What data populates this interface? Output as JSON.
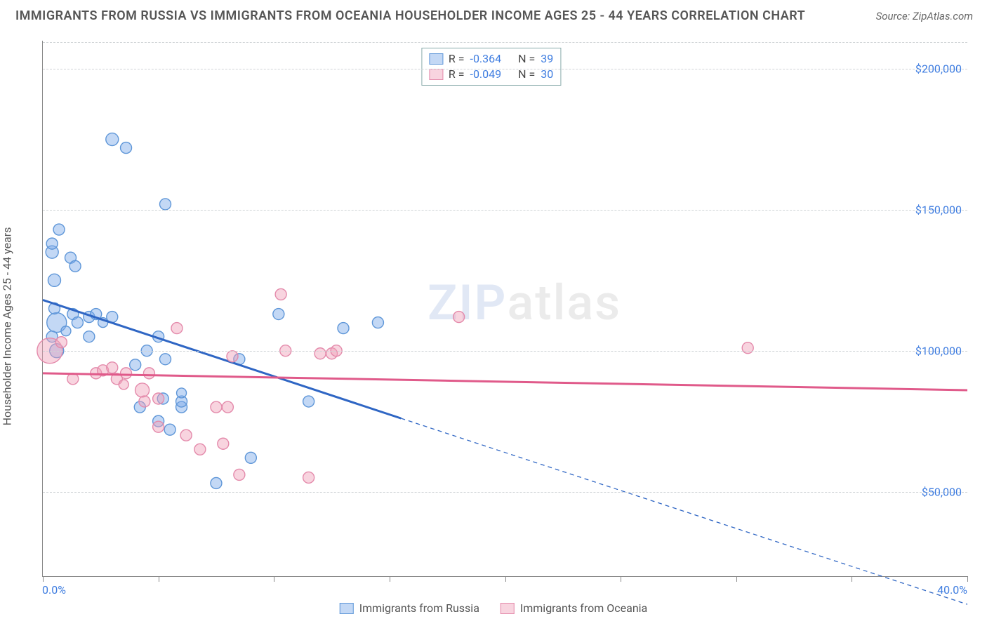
{
  "header": {
    "title": "IMMIGRANTS FROM RUSSIA VS IMMIGRANTS FROM OCEANIA HOUSEHOLDER INCOME AGES 25 - 44 YEARS CORRELATION CHART",
    "source_prefix": "Source: ",
    "source_name": "ZipAtlas.com"
  },
  "axes": {
    "y_title": "Householder Income Ages 25 - 44 years",
    "x_min_label": "0.0%",
    "x_max_label": "40.0%",
    "xlim": [
      0,
      40
    ],
    "ylim": [
      20000,
      210000
    ],
    "y_ticks": [
      50000,
      100000,
      150000,
      200000
    ],
    "y_tick_labels": [
      "$50,000",
      "$100,000",
      "$150,000",
      "$200,000"
    ],
    "x_ticks": [
      0,
      5,
      10,
      15,
      20,
      25,
      30,
      35,
      40
    ],
    "grid_color": "#cfd3d6",
    "axis_color": "#888888",
    "label_color": "#3f7de0",
    "label_fontsize": 16
  },
  "watermark": {
    "a": "ZIP",
    "b": "atlas"
  },
  "series": [
    {
      "id": "russia",
      "label": "Immigrants from Russia",
      "color_fill": "rgba(122,169,232,0.45)",
      "color_stroke": "#5e96d8",
      "line_color": "#2f66c4",
      "line_width": 3,
      "reg": {
        "x1": 0,
        "y1": 118000,
        "x2": 15.5,
        "y2": 76000,
        "dash_to_x": 40,
        "dash_to_y": 10000
      },
      "stats": {
        "R_label": "R =",
        "R": "-0.364",
        "N_label": "N =",
        "N": "39"
      },
      "marker_r_default": 8,
      "points": [
        {
          "x": 0.4,
          "y": 135000,
          "r": 9
        },
        {
          "x": 0.4,
          "y": 138000,
          "r": 8
        },
        {
          "x": 0.5,
          "y": 125000,
          "r": 9
        },
        {
          "x": 0.6,
          "y": 110000,
          "r": 14
        },
        {
          "x": 0.7,
          "y": 143000,
          "r": 8
        },
        {
          "x": 0.5,
          "y": 115000,
          "r": 8
        },
        {
          "x": 1.2,
          "y": 133000,
          "r": 8
        },
        {
          "x": 1.4,
          "y": 130000,
          "r": 8
        },
        {
          "x": 1.3,
          "y": 113000,
          "r": 8
        },
        {
          "x": 1.5,
          "y": 110000,
          "r": 8
        },
        {
          "x": 2.0,
          "y": 112000,
          "r": 8
        },
        {
          "x": 2.3,
          "y": 113000,
          "r": 8
        },
        {
          "x": 2.0,
          "y": 105000,
          "r": 8
        },
        {
          "x": 3.0,
          "y": 175000,
          "r": 9
        },
        {
          "x": 3.6,
          "y": 172000,
          "r": 8
        },
        {
          "x": 3.0,
          "y": 112000,
          "r": 8
        },
        {
          "x": 4.0,
          "y": 95000,
          "r": 8
        },
        {
          "x": 4.5,
          "y": 100000,
          "r": 8
        },
        {
          "x": 4.2,
          "y": 80000,
          "r": 8
        },
        {
          "x": 5.0,
          "y": 105000,
          "r": 8
        },
        {
          "x": 5.3,
          "y": 152000,
          "r": 8
        },
        {
          "x": 5.2,
          "y": 83000,
          "r": 8
        },
        {
          "x": 5.3,
          "y": 97000,
          "r": 8
        },
        {
          "x": 5.5,
          "y": 72000,
          "r": 8
        },
        {
          "x": 5.0,
          "y": 75000,
          "r": 8
        },
        {
          "x": 6.0,
          "y": 80000,
          "r": 8
        },
        {
          "x": 6.0,
          "y": 82000,
          "r": 8
        },
        {
          "x": 6.0,
          "y": 85000,
          "r": 7
        },
        {
          "x": 7.5,
          "y": 53000,
          "r": 8
        },
        {
          "x": 8.5,
          "y": 97000,
          "r": 8
        },
        {
          "x": 9.0,
          "y": 62000,
          "r": 8
        },
        {
          "x": 10.2,
          "y": 113000,
          "r": 8
        },
        {
          "x": 11.5,
          "y": 82000,
          "r": 8
        },
        {
          "x": 13.0,
          "y": 108000,
          "r": 8
        },
        {
          "x": 14.5,
          "y": 110000,
          "r": 8
        },
        {
          "x": 0.4,
          "y": 105000,
          "r": 8
        },
        {
          "x": 1.0,
          "y": 107000,
          "r": 7
        },
        {
          "x": 2.6,
          "y": 110000,
          "r": 7
        },
        {
          "x": 0.6,
          "y": 100000,
          "r": 10
        }
      ]
    },
    {
      "id": "oceania",
      "label": "Immigrants from Oceania",
      "color_fill": "rgba(240,160,185,0.45)",
      "color_stroke": "#e48aab",
      "line_color": "#e05a8a",
      "line_width": 3,
      "reg": {
        "x1": 0,
        "y1": 92000,
        "x2": 40,
        "y2": 86000
      },
      "stats": {
        "R_label": "R =",
        "R": "-0.049",
        "N_label": "N =",
        "N": "30"
      },
      "marker_r_default": 8,
      "points": [
        {
          "x": 0.3,
          "y": 100000,
          "r": 18
        },
        {
          "x": 0.8,
          "y": 103000,
          "r": 8
        },
        {
          "x": 1.3,
          "y": 90000,
          "r": 8
        },
        {
          "x": 2.3,
          "y": 92000,
          "r": 8
        },
        {
          "x": 2.6,
          "y": 93000,
          "r": 8
        },
        {
          "x": 3.0,
          "y": 94000,
          "r": 8
        },
        {
          "x": 3.2,
          "y": 90000,
          "r": 8
        },
        {
          "x": 3.6,
          "y": 92000,
          "r": 8
        },
        {
          "x": 4.3,
          "y": 86000,
          "r": 10
        },
        {
          "x": 4.4,
          "y": 82000,
          "r": 8
        },
        {
          "x": 4.6,
          "y": 92000,
          "r": 8
        },
        {
          "x": 5.0,
          "y": 83000,
          "r": 8
        },
        {
          "x": 5.0,
          "y": 73000,
          "r": 8
        },
        {
          "x": 5.8,
          "y": 108000,
          "r": 8
        },
        {
          "x": 6.2,
          "y": 70000,
          "r": 8
        },
        {
          "x": 6.8,
          "y": 65000,
          "r": 8
        },
        {
          "x": 7.5,
          "y": 80000,
          "r": 8
        },
        {
          "x": 7.8,
          "y": 67000,
          "r": 8
        },
        {
          "x": 8.0,
          "y": 80000,
          "r": 8
        },
        {
          "x": 8.2,
          "y": 98000,
          "r": 8
        },
        {
          "x": 8.5,
          "y": 56000,
          "r": 8
        },
        {
          "x": 10.3,
          "y": 120000,
          "r": 8
        },
        {
          "x": 10.5,
          "y": 100000,
          "r": 8
        },
        {
          "x": 11.5,
          "y": 55000,
          "r": 8
        },
        {
          "x": 12.0,
          "y": 99000,
          "r": 8
        },
        {
          "x": 12.5,
          "y": 99000,
          "r": 8
        },
        {
          "x": 12.7,
          "y": 100000,
          "r": 8
        },
        {
          "x": 18.0,
          "y": 112000,
          "r": 8
        },
        {
          "x": 30.5,
          "y": 101000,
          "r": 8
        },
        {
          "x": 3.5,
          "y": 88000,
          "r": 7
        }
      ]
    }
  ]
}
